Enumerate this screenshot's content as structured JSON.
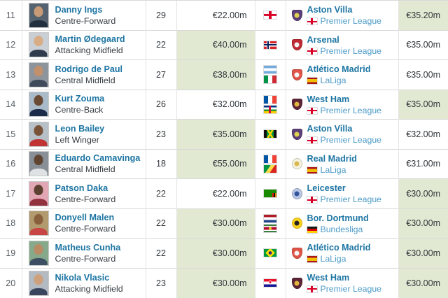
{
  "colors": {
    "highlight_green": "#e2e9d2",
    "link_blue": "#1d75a3",
    "league_link_blue": "#4d9bc7",
    "text_dark": "#32373c",
    "rank_gray": "#565d63",
    "row_border": "#d9d9d9"
  },
  "table": {
    "rows": [
      {
        "rank": "11",
        "player": {
          "name": "Danny Ings",
          "position": "Centre-Forward",
          "photo": {
            "bg": "#54636f",
            "skin": "#c99a76",
            "shirt": "#222f3f"
          }
        },
        "age": "29",
        "market_value": {
          "text": "€22.00m",
          "highlight": false
        },
        "nationalities": [
          {
            "name": "England",
            "flag": "england"
          }
        ],
        "club": {
          "name": "Aston Villa",
          "crest": {
            "name": "aston-villa-crest",
            "shape": "shield",
            "c1": "#5d3f7a",
            "c2": "#ded34e"
          },
          "league": {
            "name": "Premier League",
            "flag": "england"
          }
        },
        "fee": {
          "text": "€35.20m",
          "highlight": true
        }
      },
      {
        "rank": "12",
        "player": {
          "name": "Martin Ødegaard",
          "position": "Attacking Midfield",
          "photo": {
            "bg": "#c9cfd4",
            "skin": "#d8ac85",
            "shirt": "#303c4e"
          }
        },
        "age": "22",
        "market_value": {
          "text": "€40.00m",
          "highlight": true
        },
        "nationalities": [
          {
            "name": "Norway",
            "flag": "norway"
          }
        ],
        "club": {
          "name": "Arsenal",
          "crest": {
            "name": "arsenal-crest",
            "shape": "shield",
            "c1": "#c02a33",
            "c2": "#f3f3f3"
          },
          "league": {
            "name": "Premier League",
            "flag": "england"
          }
        },
        "fee": {
          "text": "€35.00m",
          "highlight": false
        }
      },
      {
        "rank": "13",
        "player": {
          "name": "Rodrigo de Paul",
          "position": "Central Midfield",
          "photo": {
            "bg": "#8d949c",
            "skin": "#c2906b",
            "shirt": "#3f4b5b"
          }
        },
        "age": "27",
        "market_value": {
          "text": "€38.00m",
          "highlight": true
        },
        "nationalities": [
          {
            "name": "Argentina",
            "flag": "argentina"
          },
          {
            "name": "Italy",
            "flag": "italy"
          }
        ],
        "club": {
          "name": "Atlético Madrid",
          "crest": {
            "name": "atletico-madrid-crest",
            "shape": "shield",
            "c1": "#e05548",
            "c2": "#f6f6f6"
          },
          "league": {
            "name": "LaLiga",
            "flag": "spain"
          }
        },
        "fee": {
          "text": "€35.00m",
          "highlight": false
        }
      },
      {
        "rank": "14",
        "player": {
          "name": "Kurt Zouma",
          "position": "Centre-Back",
          "photo": {
            "bg": "#a9bac9",
            "skin": "#6b4a33",
            "shirt": "#1c2b4a"
          }
        },
        "age": "26",
        "market_value": {
          "text": "€32.00m",
          "highlight": false
        },
        "nationalities": [
          {
            "name": "France",
            "flag": "france"
          },
          {
            "name": "Central African Republic",
            "flag": "car"
          }
        ],
        "club": {
          "name": "West Ham",
          "crest": {
            "name": "west-ham-crest",
            "shape": "shield",
            "c1": "#5e2438",
            "c2": "#e0b83e"
          },
          "league": {
            "name": "Premier League",
            "flag": "england"
          }
        },
        "fee": {
          "text": "€35.00m",
          "highlight": true
        }
      },
      {
        "rank": "15",
        "player": {
          "name": "Leon Bailey",
          "position": "Left Winger",
          "photo": {
            "bg": "#b7bfc7",
            "skin": "#7a5238",
            "shirt": "#c03434"
          }
        },
        "age": "23",
        "market_value": {
          "text": "€35.00m",
          "highlight": true
        },
        "nationalities": [
          {
            "name": "Jamaica",
            "flag": "jamaica"
          }
        ],
        "club": {
          "name": "Aston Villa",
          "crest": {
            "name": "aston-villa-crest",
            "shape": "shield",
            "c1": "#5d3f7a",
            "c2": "#ded34e"
          },
          "league": {
            "name": "Premier League",
            "flag": "england"
          }
        },
        "fee": {
          "text": "€32.00m",
          "highlight": false
        }
      },
      {
        "rank": "16",
        "player": {
          "name": "Eduardo Camavinga",
          "position": "Central Midfield",
          "photo": {
            "bg": "#898f96",
            "skin": "#5f4531",
            "shirt": "#dfe2e4"
          }
        },
        "age": "18",
        "market_value": {
          "text": "€55.00m",
          "highlight": true
        },
        "nationalities": [
          {
            "name": "France",
            "flag": "france"
          },
          {
            "name": "Congo",
            "flag": "congo"
          }
        ],
        "club": {
          "name": "Real Madrid",
          "crest": {
            "name": "real-madrid-crest",
            "shape": "circle",
            "c1": "#f5f1e0",
            "c2": "#d9b94e"
          },
          "league": {
            "name": "LaLiga",
            "flag": "spain"
          }
        },
        "fee": {
          "text": "€31.00m",
          "highlight": false
        }
      },
      {
        "rank": "17",
        "player": {
          "name": "Patson Daka",
          "position": "Centre-Forward",
          "photo": {
            "bg": "#e2a7b4",
            "skin": "#5c4130",
            "shirt": "#93323f"
          }
        },
        "age": "22",
        "market_value": {
          "text": "€22.00m",
          "highlight": false
        },
        "nationalities": [
          {
            "name": "Zambia",
            "flag": "zambia"
          }
        ],
        "club": {
          "name": "Leicester",
          "crest": {
            "name": "leicester-crest",
            "shape": "circle",
            "c1": "#b9c6e4",
            "c2": "#33539c"
          },
          "league": {
            "name": "Premier League",
            "flag": "england"
          }
        },
        "fee": {
          "text": "€30.00m",
          "highlight": true
        }
      },
      {
        "rank": "18",
        "player": {
          "name": "Donyell Malen",
          "position": "Centre-Forward",
          "photo": {
            "bg": "#b09a6e",
            "skin": "#8a5f3e",
            "shirt": "#c84545"
          }
        },
        "age": "22",
        "market_value": {
          "text": "€30.00m",
          "highlight": true
        },
        "nationalities": [
          {
            "name": "Netherlands",
            "flag": "netherlands"
          },
          {
            "name": "Suriname",
            "flag": "suriname"
          }
        ],
        "club": {
          "name": "Bor. Dortmund",
          "crest": {
            "name": "borussia-dortmund-crest",
            "shape": "circle",
            "c1": "#f8d41c",
            "c2": "#26221f"
          },
          "league": {
            "name": "Bundesliga",
            "flag": "germany"
          }
        },
        "fee": {
          "text": "€30.00m",
          "highlight": true
        }
      },
      {
        "rank": "19",
        "player": {
          "name": "Matheus Cunha",
          "position": "Centre-Forward",
          "photo": {
            "bg": "#85a98a",
            "skin": "#b98a63",
            "shirt": "#3e4f63"
          }
        },
        "age": "22",
        "market_value": {
          "text": "€30.00m",
          "highlight": true
        },
        "nationalities": [
          {
            "name": "Brazil",
            "flag": "brazil"
          }
        ],
        "club": {
          "name": "Atlético Madrid",
          "crest": {
            "name": "atletico-madrid-crest",
            "shape": "shield",
            "c1": "#e05548",
            "c2": "#f6f6f6"
          },
          "league": {
            "name": "LaLiga",
            "flag": "spain"
          }
        },
        "fee": {
          "text": "€30.00m",
          "highlight": true
        }
      },
      {
        "rank": "20",
        "player": {
          "name": "Nikola Vlasic",
          "position": "Attacking Midfield",
          "photo": {
            "bg": "#b3bac1",
            "skin": "#cfa07c",
            "shirt": "#39465e"
          }
        },
        "age": "23",
        "market_value": {
          "text": "€30.00m",
          "highlight": true
        },
        "nationalities": [
          {
            "name": "Croatia",
            "flag": "croatia"
          }
        ],
        "club": {
          "name": "West Ham",
          "crest": {
            "name": "west-ham-crest",
            "shape": "shield",
            "c1": "#5e2438",
            "c2": "#e0b83e"
          },
          "league": {
            "name": "Premier League",
            "flag": "england"
          }
        },
        "fee": {
          "text": "€30.00m",
          "highlight": true
        }
      }
    ]
  }
}
